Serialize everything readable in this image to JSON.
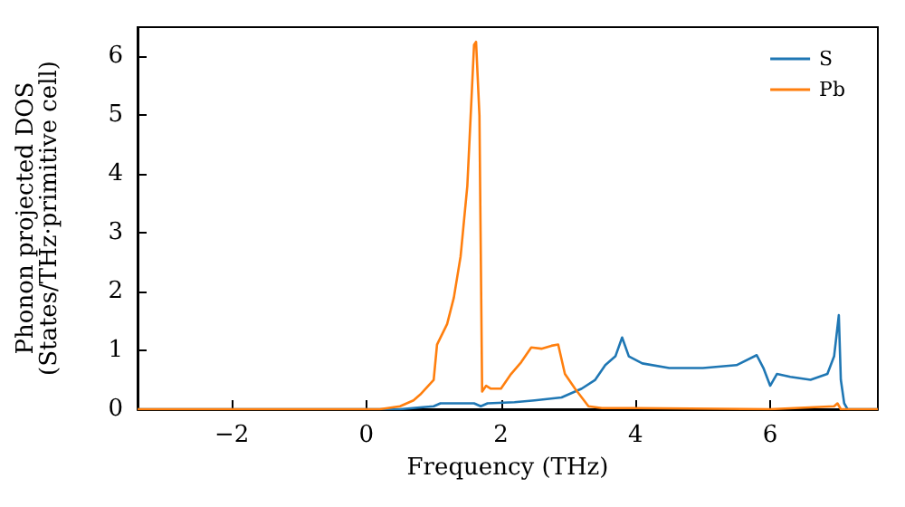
{
  "chart_data": {
    "type": "line",
    "xlabel": "Frequency (THz)",
    "ylabel": "Phonon projected DOS\n(States/THz·primitive cell)",
    "xlim": [
      -3.4,
      7.6
    ],
    "xticks": [
      {
        "value": -2,
        "label": "−2"
      },
      0,
      2,
      4,
      6
    ],
    "ylim": [
      0,
      6.5
    ],
    "yticks": [
      0,
      1,
      2,
      3,
      4,
      5,
      6
    ],
    "grid": false,
    "legend": "top right",
    "marker": "none",
    "line_style": "solid",
    "series": [
      {
        "name": "S",
        "color": "#1f77b4",
        "x": [
          -3.4,
          0.5,
          0.8,
          1.0,
          1.1,
          1.6,
          1.7,
          1.8,
          2.2,
          2.5,
          2.9,
          3.2,
          3.4,
          3.55,
          3.7,
          3.8,
          3.9,
          4.1,
          4.5,
          5.0,
          5.5,
          5.8,
          5.9,
          6.0,
          6.1,
          6.3,
          6.6,
          6.85,
          6.95,
          7.02,
          7.05,
          7.1,
          7.15,
          7.6
        ],
        "values": [
          0,
          0,
          0.03,
          0.05,
          0.1,
          0.1,
          0.05,
          0.1,
          0.12,
          0.15,
          0.2,
          0.35,
          0.5,
          0.75,
          0.9,
          1.22,
          0.9,
          0.78,
          0.7,
          0.7,
          0.75,
          0.92,
          0.7,
          0.4,
          0.6,
          0.55,
          0.5,
          0.6,
          0.9,
          1.6,
          0.5,
          0.1,
          0,
          0
        ]
      },
      {
        "name": "Pb",
        "color": "#ff7f0e",
        "x": [
          -3.4,
          0.2,
          0.5,
          0.7,
          0.8,
          1.0,
          1.05,
          1.2,
          1.3,
          1.4,
          1.5,
          1.55,
          1.6,
          1.63,
          1.68,
          1.72,
          1.78,
          1.85,
          2.0,
          2.15,
          2.3,
          2.45,
          2.6,
          2.75,
          2.85,
          2.95,
          3.1,
          3.3,
          3.5,
          4.0,
          6.0,
          6.95,
          7.0,
          7.05,
          7.6
        ],
        "values": [
          0,
          0,
          0.05,
          0.15,
          0.25,
          0.5,
          1.1,
          1.45,
          1.9,
          2.6,
          3.8,
          5.0,
          6.2,
          6.25,
          5.0,
          0.3,
          0.4,
          0.35,
          0.35,
          0.6,
          0.8,
          1.05,
          1.03,
          1.08,
          1.1,
          0.6,
          0.35,
          0.05,
          0.02,
          0.02,
          0,
          0.05,
          0.1,
          0,
          0
        ]
      }
    ]
  }
}
